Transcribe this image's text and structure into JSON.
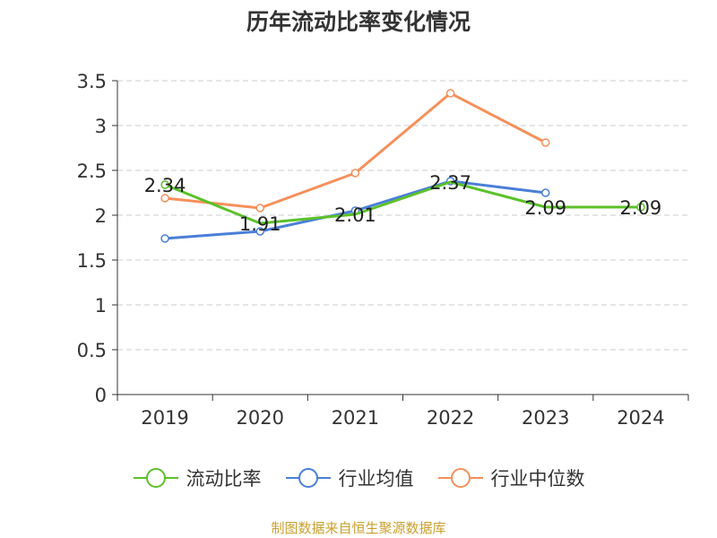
{
  "title": "历年流动比率变化情况",
  "source": "制图数据来自恒生聚源数据库",
  "chart_data": {
    "type": "line",
    "categories": [
      "2019",
      "2020",
      "2021",
      "2022",
      "2023",
      "2024"
    ],
    "ylim": [
      0,
      3.5
    ],
    "yticks": [
      "0",
      "0.5",
      "1",
      "1.5",
      "2",
      "2.5",
      "3",
      "3.5"
    ],
    "grid": true,
    "legend_position": "bottom",
    "series": [
      {
        "name": "流动比率",
        "color": "#5cc12b",
        "values": [
          2.34,
          1.91,
          2.01,
          2.37,
          2.09,
          2.09
        ],
        "labels": [
          "2.34",
          "1.91",
          "2.01",
          "2.37",
          "2.09",
          "2.09"
        ],
        "markers": [
          true,
          false,
          false,
          false,
          false,
          true
        ]
      },
      {
        "name": "行业均值",
        "color": "#4a7fd6",
        "values": [
          1.74,
          1.82,
          2.05,
          2.38,
          2.25,
          null
        ],
        "labels": [],
        "markers": [
          true,
          true,
          true,
          true,
          true,
          false
        ]
      },
      {
        "name": "行业中位数",
        "color": "#f5905a",
        "values": [
          2.19,
          2.08,
          2.47,
          3.36,
          2.81,
          null
        ],
        "labels": [],
        "markers": [
          true,
          true,
          true,
          true,
          true,
          false
        ]
      }
    ]
  }
}
